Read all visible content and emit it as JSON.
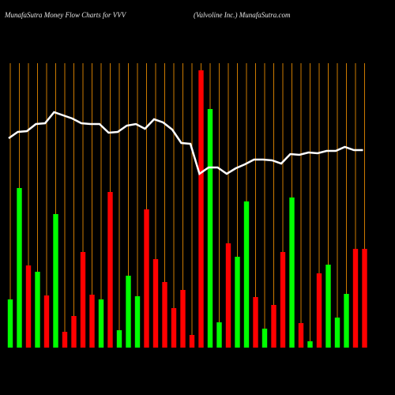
{
  "chart_data": {
    "type": "bar",
    "title": "MunafaSutra  Money Flow  Charts for VVV",
    "subtitle": "(Valvoline   Inc.) MunafaSutra.com",
    "categories": [
      null,
      null,
      null,
      null,
      null,
      null,
      null,
      null,
      null,
      null,
      null,
      null,
      null,
      null,
      null,
      null,
      null,
      null,
      null,
      null,
      null,
      null,
      null,
      null,
      null,
      null,
      null,
      null,
      null,
      null,
      null,
      null,
      null,
      null,
      null,
      null,
      null,
      null,
      null,
      null
    ],
    "values": [
      61,
      202,
      104,
      96,
      66,
      169,
      20,
      40,
      121,
      67,
      61,
      197,
      22,
      91,
      65,
      175,
      112,
      83,
      50,
      73,
      16,
      351,
      302,
      32,
      132,
      115,
      185,
      64,
      24,
      54,
      121,
      190,
      31,
      8,
      94,
      105,
      38,
      68,
      125,
      125
    ],
    "colors": [
      "#00ff00",
      "#00ff00",
      "#ff0000",
      "#00ff00",
      "#ff0000",
      "#00ff00",
      "#ff0000",
      "#ff0000",
      "#ff0000",
      "#ff0000",
      "#00ff00",
      "#ff0000",
      "#00ff00",
      "#00ff00",
      "#00ff00",
      "#ff0000",
      "#ff0000",
      "#ff0000",
      "#ff0000",
      "#ff0000",
      "#ff0000",
      "#ff0000",
      "#00ff00",
      "#00ff00",
      "#ff0000",
      "#00ff00",
      "#00ff00",
      "#ff0000",
      "#00ff00",
      "#ff0000",
      "#ff0000",
      "#00ff00",
      "#ff0000",
      "#00ff00",
      "#ff0000",
      "#00ff00",
      "#00ff00",
      "#00ff00",
      "#ff0000",
      "#ff0000"
    ],
    "line_values": [
      265,
      273,
      274,
      283,
      284,
      298,
      294,
      290,
      284,
      283,
      283,
      272,
      273,
      281,
      283,
      277,
      289,
      285,
      276,
      259,
      258,
      220,
      228,
      228,
      220,
      227,
      232,
      238,
      238,
      237,
      233,
      245,
      244,
      247,
      246,
      249,
      249,
      254,
      250,
      250
    ],
    "line_color": "#ffffff",
    "grid_color": "#cc7a00",
    "ylim": [
      0,
      360
    ]
  }
}
